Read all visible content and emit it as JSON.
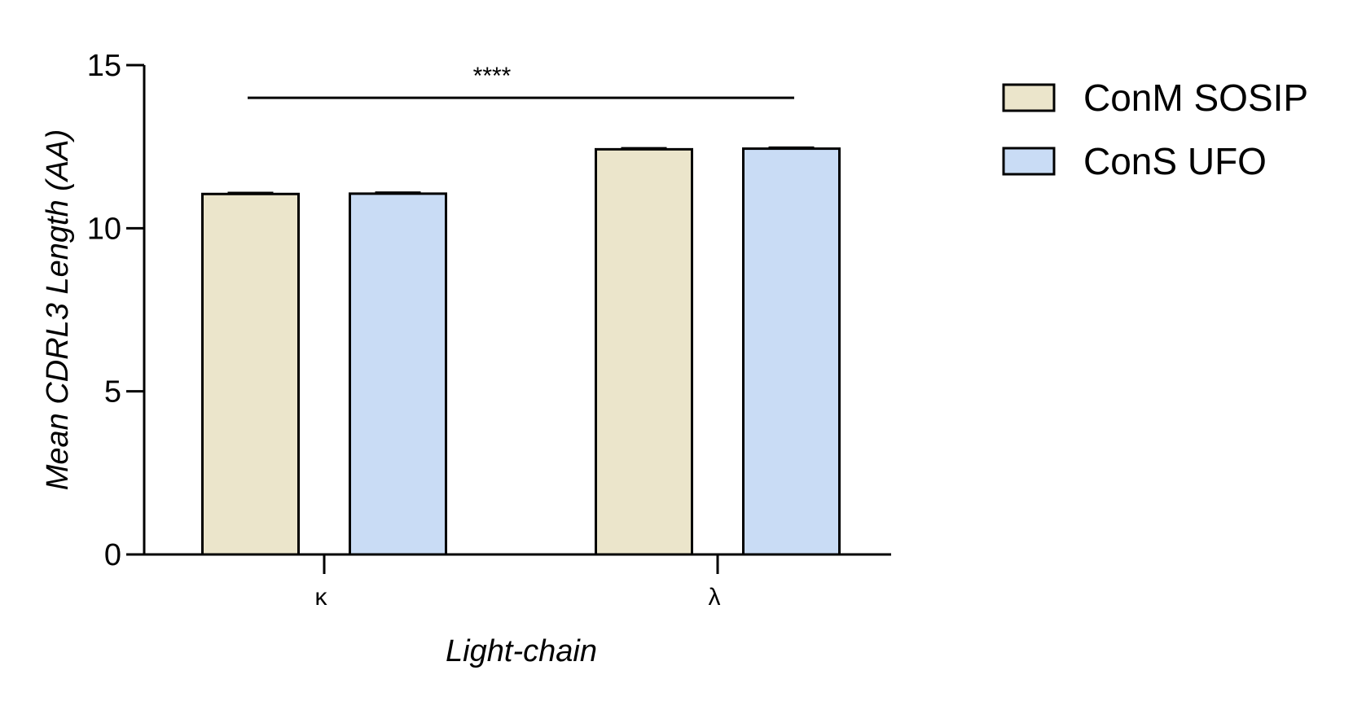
{
  "chart_data": {
    "type": "bar",
    "categories": [
      "κ",
      "λ"
    ],
    "series": [
      {
        "name": "ConM SOSIP",
        "color": "#ebe5cb",
        "values": [
          11.05,
          12.42
        ],
        "errors": [
          0.03,
          0.03
        ]
      },
      {
        "name": "ConS UFO",
        "color": "#c9dcf5",
        "values": [
          11.06,
          12.44
        ],
        "errors": [
          0.03,
          0.03
        ]
      }
    ],
    "xlabel": "Light-chain",
    "ylabel": "Mean CDRL3 Length (AA)",
    "ylim": [
      0,
      15
    ],
    "yticks": [
      0,
      5,
      10,
      15
    ],
    "yticklabels": [
      "0",
      "5",
      "10",
      "15"
    ],
    "grid": false,
    "legend": "right",
    "significance": {
      "label": "****",
      "y": 14.0,
      "from": "κ",
      "to": "λ"
    }
  }
}
